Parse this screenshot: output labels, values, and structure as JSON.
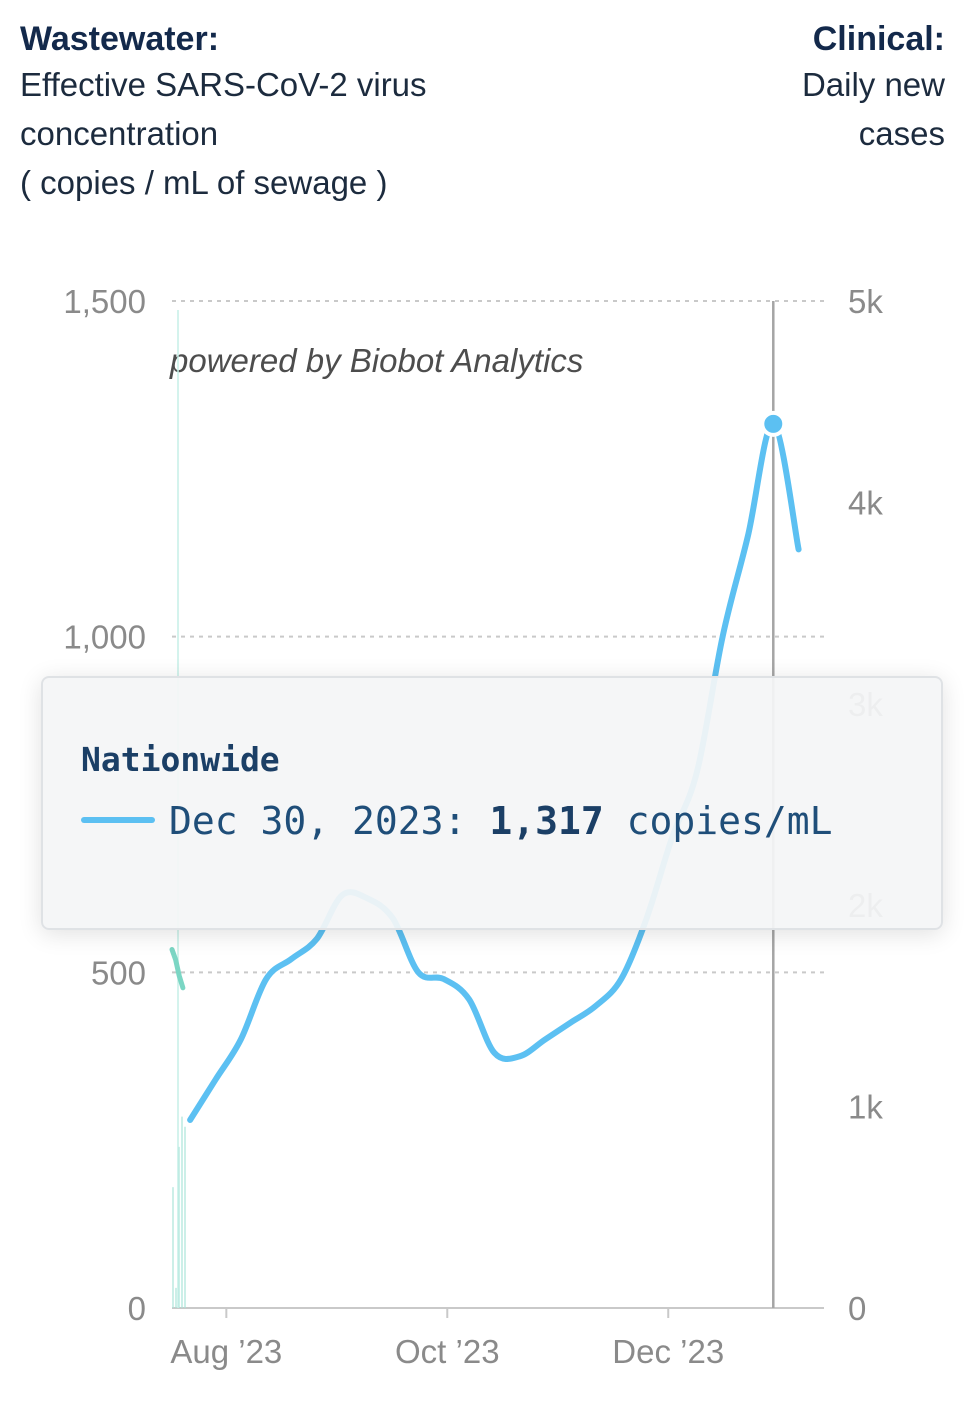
{
  "header": {
    "left_title": "Wastewater:",
    "left_subtitle_lines": [
      "Effective SARS-CoV-2 virus",
      "concentration",
      "( copies  /  mL of sewage )"
    ],
    "right_title": "Clinical:",
    "right_subtitle_lines": [
      "Daily new",
      "cases"
    ]
  },
  "chart_data": {
    "type": "line",
    "watermark": "powered by Biobot Analytics",
    "left_axis": {
      "ticks": [
        "0",
        "500",
        "1,000",
        "1,500"
      ],
      "tick_values": [
        0,
        500,
        1000,
        1500
      ],
      "ylim": [
        0,
        1500
      ]
    },
    "right_axis": {
      "ticks": [
        "0",
        "1k",
        "2k",
        "3k",
        "4k",
        "5k"
      ],
      "tick_values": [
        0,
        1000,
        2000,
        3000,
        4000,
        5000
      ],
      "ylim": [
        0,
        5000
      ]
    },
    "x_axis": {
      "ticks": [
        "Aug ’23",
        "Oct ’23",
        "Dec ’23"
      ],
      "tick_dates": [
        "2023-08-01",
        "2023-10-01",
        "2023-12-01"
      ],
      "xlim": [
        "2023-07-17",
        "2024-01-13"
      ]
    },
    "grid": true,
    "series": [
      {
        "name": "Nationwide",
        "color": "#5cc0f2",
        "axis": "left",
        "x": [
          "2023-07-22",
          "2023-07-29",
          "2023-08-05",
          "2023-08-12",
          "2023-08-19",
          "2023-08-26",
          "2023-09-02",
          "2023-09-09",
          "2023-09-16",
          "2023-09-23",
          "2023-09-30",
          "2023-10-07",
          "2023-10-14",
          "2023-10-21",
          "2023-10-28",
          "2023-11-04",
          "2023-11-11",
          "2023-11-18",
          "2023-11-25",
          "2023-12-02",
          "2023-12-09",
          "2023-12-16",
          "2023-12-23",
          "2023-12-30",
          "2024-01-06"
        ],
        "y": [
          280,
          340,
          400,
          490,
          520,
          550,
          615,
          610,
          580,
          500,
          490,
          460,
          380,
          375,
          400,
          425,
          450,
          490,
          580,
          700,
          800,
          1000,
          1150,
          1317,
          1130
        ]
      },
      {
        "name": "Clinical daily new cases",
        "color": "#7bd6c4",
        "axis": "right",
        "x": [
          "2023-07-17",
          "2023-07-18",
          "2023-07-19",
          "2023-07-20"
        ],
        "y": [
          1780,
          1730,
          1650,
          1590
        ]
      }
    ],
    "hover": {
      "date": "2023-12-30",
      "value": 1317
    }
  },
  "tooltip": {
    "title": "Nationwide",
    "date_label": "Dec 30, 2023:",
    "value": "1,317",
    "unit": "copies/mL"
  }
}
